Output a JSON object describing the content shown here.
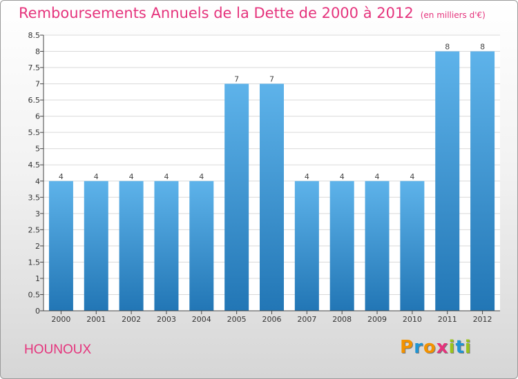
{
  "header": {
    "title": "Remboursements Annuels de la Dette de 2000 à 2012",
    "unit": "(en milliers d'€)"
  },
  "footer": {
    "commune": "HOUNOUX",
    "brand": "Proxiti",
    "brand_colors": [
      "#f39200",
      "#1f95d4",
      "#f39200",
      "#e5337c",
      "#9ac31c",
      "#1f95d4",
      "#9ac31c"
    ]
  },
  "colors": {
    "accent": "#e5337c",
    "bar_top": "#5eb3ea",
    "bar_bottom": "#2276b5",
    "grid": "#d9d9d9",
    "axis": "#444444"
  },
  "chart_data": {
    "type": "bar",
    "categories": [
      "2000",
      "2001",
      "2002",
      "2003",
      "2004",
      "2005",
      "2006",
      "2007",
      "2008",
      "2009",
      "2010",
      "2011",
      "2012"
    ],
    "values": [
      4,
      4,
      4,
      4,
      4,
      7,
      7,
      4,
      4,
      4,
      4,
      8,
      8
    ],
    "ylim": [
      0,
      8.5
    ],
    "y_ticks": [
      "0",
      "0.5",
      "1",
      "1.5",
      "2",
      "2.5",
      "3",
      "3.5",
      "4",
      "4.5",
      "5",
      "5.5",
      "6",
      "6.5",
      "7",
      "7.5",
      "8",
      "8.5"
    ],
    "grid": true,
    "data_labels": true
  }
}
